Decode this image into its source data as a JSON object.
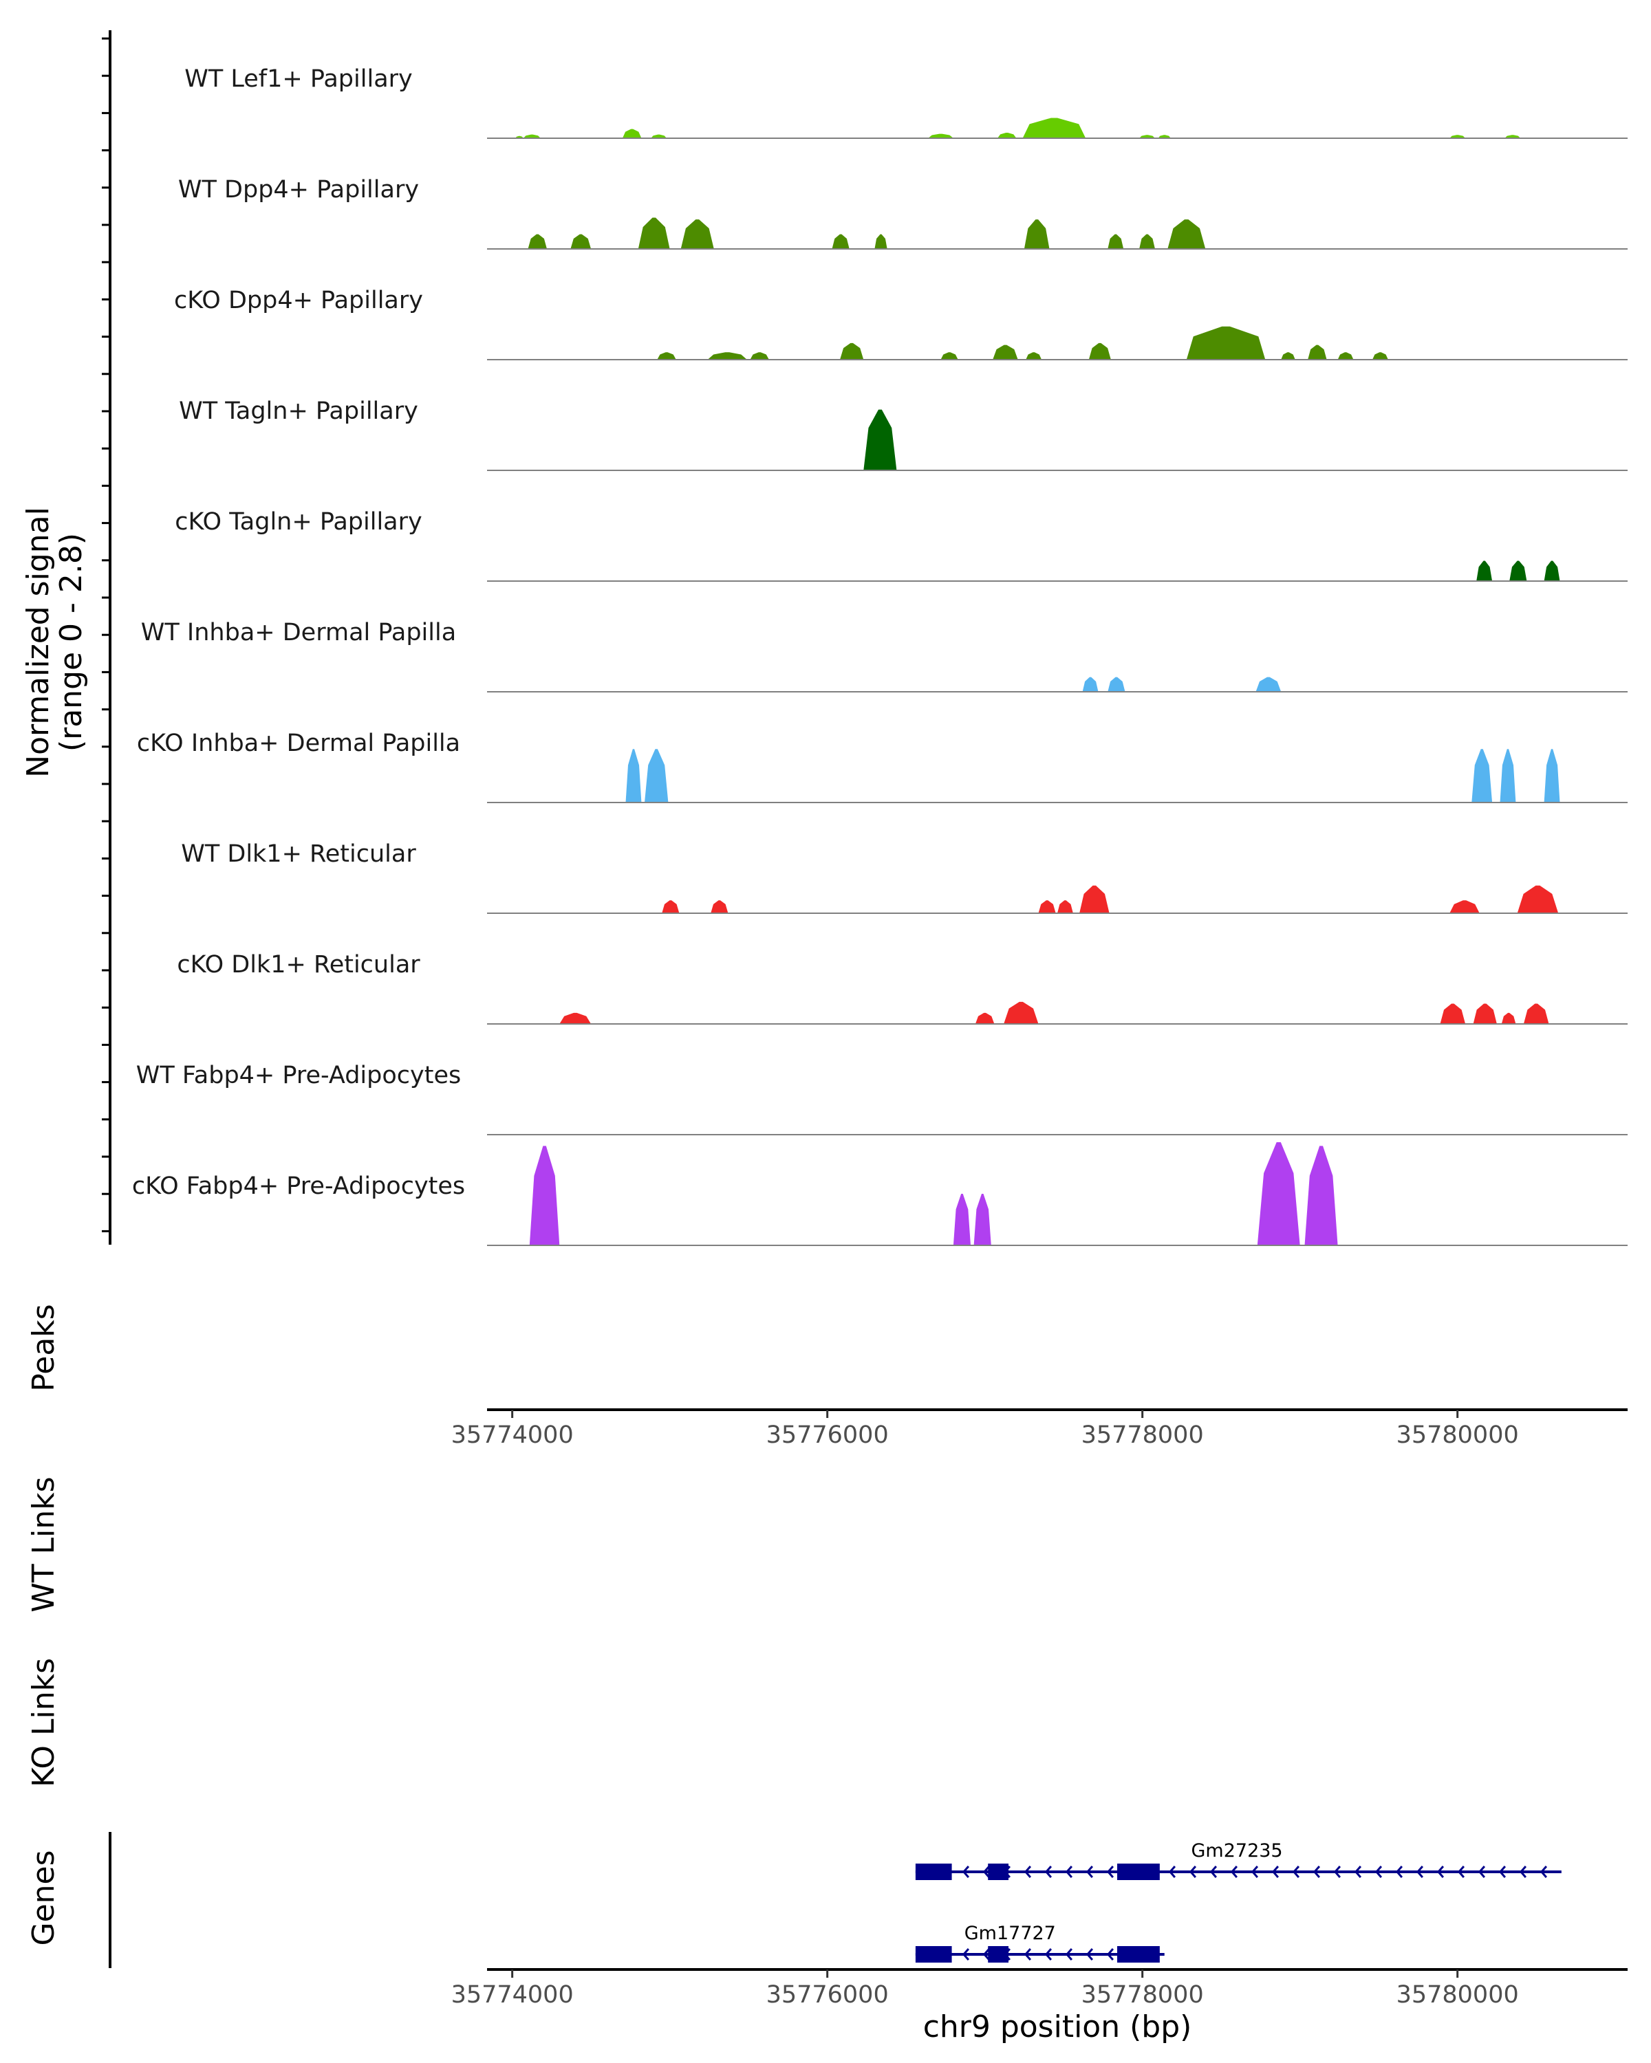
{
  "chart_data": {
    "type": "area",
    "title": "",
    "xlabel": "chr9 position (bp)",
    "xlim": [
      35773840,
      35781080
    ],
    "x_ticks": [
      35774000,
      35776000,
      35778000,
      35780000
    ],
    "x_tick_labels": [
      "35774000",
      "35776000",
      "35778000",
      "35780000"
    ],
    "signal_axis_label_line1": "Normalized signal",
    "signal_axis_label_line2": "(range 0 - 2.8)",
    "ylim": [
      0,
      2.8
    ],
    "panel_labels": {
      "peaks": "Peaks",
      "wt_links": "WT Links",
      "ko_links": "KO Links",
      "genes": "Genes"
    },
    "tracks": [
      {
        "name": "WT Lef1+ Papillary",
        "color": "#66cc00",
        "peaks": [
          [
            35774020,
            35774070,
            0.06
          ],
          [
            35774070,
            35774180,
            0.1
          ],
          [
            35774700,
            35774820,
            0.25
          ],
          [
            35774880,
            35774980,
            0.1
          ],
          [
            35776640,
            35776800,
            0.12
          ],
          [
            35777080,
            35777200,
            0.15
          ],
          [
            35777240,
            35777640,
            0.55
          ],
          [
            35777980,
            35778080,
            0.09
          ],
          [
            35778100,
            35778180,
            0.09
          ],
          [
            35779950,
            35780050,
            0.09
          ],
          [
            35780300,
            35780400,
            0.09
          ]
        ]
      },
      {
        "name": "WT Dpp4+ Papillary",
        "color": "#4d8c00",
        "peaks": [
          [
            35774100,
            35774220,
            0.4
          ],
          [
            35774370,
            35774500,
            0.4
          ],
          [
            35774800,
            35775000,
            0.85
          ],
          [
            35775070,
            35775280,
            0.8
          ],
          [
            35776030,
            35776140,
            0.4
          ],
          [
            35776300,
            35776380,
            0.4
          ],
          [
            35777250,
            35777410,
            0.8
          ],
          [
            35777780,
            35777880,
            0.4
          ],
          [
            35777980,
            35778080,
            0.4
          ],
          [
            35778160,
            35778400,
            0.8
          ]
        ]
      },
      {
        "name": "cKO Dpp4+ Papillary",
        "color": "#4d8c00",
        "peaks": [
          [
            35774920,
            35775040,
            0.2
          ],
          [
            35775240,
            35775490,
            0.2
          ],
          [
            35775510,
            35775630,
            0.2
          ],
          [
            35776080,
            35776230,
            0.45
          ],
          [
            35776720,
            35776830,
            0.2
          ],
          [
            35777050,
            35777210,
            0.4
          ],
          [
            35777260,
            35777360,
            0.2
          ],
          [
            35777660,
            35777800,
            0.45
          ],
          [
            35778280,
            35778780,
            0.9
          ],
          [
            35778880,
            35778970,
            0.2
          ],
          [
            35779050,
            35779170,
            0.4
          ],
          [
            35779240,
            35779340,
            0.2
          ],
          [
            35779460,
            35779560,
            0.2
          ]
        ]
      },
      {
        "name": "WT Tagln+ Papillary",
        "color": "#006400",
        "peaks": [
          [
            35776230,
            35776440,
            1.65
          ]
        ]
      },
      {
        "name": "cKO Tagln+ Papillary",
        "color": "#006400",
        "peaks": [
          [
            35780120,
            35780220,
            0.55
          ],
          [
            35780330,
            35780440,
            0.55
          ],
          [
            35780550,
            35780650,
            0.55
          ]
        ]
      },
      {
        "name": "WT Inhba+ Dermal Papilla",
        "color": "#56b4f0",
        "peaks": [
          [
            35777620,
            35777720,
            0.4
          ],
          [
            35777780,
            35777890,
            0.4
          ],
          [
            35778720,
            35778880,
            0.4
          ]
        ]
      },
      {
        "name": "cKO Inhba+ Dermal Papilla",
        "color": "#56b4f0",
        "peaks": [
          [
            35774720,
            35774820,
            1.45
          ],
          [
            35774840,
            35774990,
            1.45
          ],
          [
            35780090,
            35780220,
            1.45
          ],
          [
            35780270,
            35780370,
            1.45
          ],
          [
            35780550,
            35780650,
            1.45
          ]
        ]
      },
      {
        "name": "WT Dlk1+ Reticular",
        "color": "#f02828",
        "peaks": [
          [
            35774950,
            35775060,
            0.35
          ],
          [
            35775260,
            35775370,
            0.35
          ],
          [
            35777340,
            35777450,
            0.35
          ],
          [
            35777460,
            35777560,
            0.35
          ],
          [
            35777600,
            35777790,
            0.75
          ],
          [
            35779950,
            35780140,
            0.35
          ],
          [
            35780380,
            35780640,
            0.75
          ]
        ]
      },
      {
        "name": "cKO Dlk1+ Reticular",
        "color": "#f02828",
        "peaks": [
          [
            35774300,
            35774500,
            0.3
          ],
          [
            35776940,
            35777060,
            0.3
          ],
          [
            35777120,
            35777340,
            0.6
          ],
          [
            35779890,
            35780050,
            0.55
          ],
          [
            35780100,
            35780250,
            0.55
          ],
          [
            35780280,
            35780370,
            0.3
          ],
          [
            35780420,
            35780580,
            0.55
          ]
        ]
      },
      {
        "name": "WT Fabp4+ Pre-Adipocytes",
        "color": "#b040f0",
        "peaks": []
      },
      {
        "name": "cKO Fabp4+ Pre-Adipocytes",
        "color": "#b040f0",
        "peaks": [
          [
            35774110,
            35774300,
            2.7
          ],
          [
            35776800,
            35776910,
            1.4
          ],
          [
            35776930,
            35777040,
            1.4
          ],
          [
            35778730,
            35779000,
            2.8
          ],
          [
            35779030,
            35779240,
            2.7
          ]
        ]
      }
    ],
    "genes": [
      {
        "name": "Gm27235",
        "strand": "-",
        "start": 35776560,
        "end": 35780660,
        "exons": [
          [
            35776560,
            35776790
          ],
          [
            35777020,
            35777150
          ],
          [
            35777840,
            35778110
          ]
        ]
      },
      {
        "name": "Gm17727",
        "strand": "-",
        "start": 35776560,
        "end": 35778140,
        "exons": [
          [
            35776560,
            35776790
          ],
          [
            35777020,
            35777150
          ],
          [
            35777840,
            35778110
          ]
        ]
      }
    ]
  }
}
